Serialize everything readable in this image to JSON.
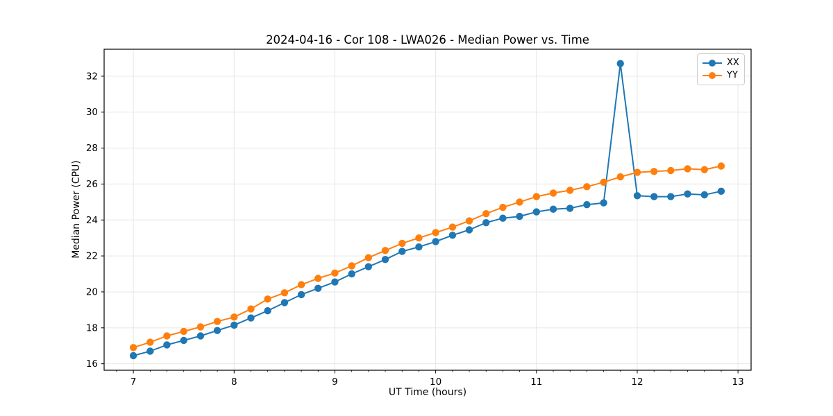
{
  "chart_data": {
    "type": "line",
    "title": "2024-04-16 - Cor 108 - LWA026 - Median Power vs. Time",
    "xlabel": "UT Time (hours)",
    "ylabel": "Median Power (CPU)",
    "xlim": [
      6.71,
      13.13
    ],
    "ylim": [
      15.64,
      33.5
    ],
    "xticks": [
      7,
      8,
      9,
      10,
      11,
      12,
      13
    ],
    "yticks": [
      16,
      18,
      20,
      22,
      24,
      26,
      28,
      30,
      32
    ],
    "x_minor_tick_step": 0.16667,
    "grid": true,
    "grid_color": "#e6e6e6",
    "spine_color": "#000000",
    "legend_position": "upper right",
    "marker": "circle",
    "x": [
      7.0,
      7.167,
      7.333,
      7.5,
      7.667,
      7.833,
      8.0,
      8.167,
      8.333,
      8.5,
      8.667,
      8.833,
      9.0,
      9.167,
      9.333,
      9.5,
      9.667,
      9.833,
      10.0,
      10.167,
      10.333,
      10.5,
      10.667,
      10.833,
      11.0,
      11.167,
      11.333,
      11.5,
      11.667,
      11.833,
      12.0,
      12.167,
      12.333,
      12.5,
      12.667,
      12.833
    ],
    "series": [
      {
        "name": "XX",
        "color": "#1f77b4",
        "values": [
          16.45,
          16.7,
          17.05,
          17.3,
          17.55,
          17.85,
          18.15,
          18.55,
          18.95,
          19.4,
          19.85,
          20.2,
          20.55,
          21.0,
          21.4,
          21.8,
          22.25,
          22.5,
          22.8,
          23.15,
          23.45,
          23.85,
          24.1,
          24.2,
          24.45,
          24.6,
          24.65,
          24.85,
          24.95,
          32.7,
          25.35,
          25.3,
          25.3,
          25.45,
          25.4,
          25.6
        ]
      },
      {
        "name": "YY",
        "color": "#ff7f0e",
        "values": [
          16.9,
          17.2,
          17.55,
          17.8,
          18.05,
          18.35,
          18.6,
          19.05,
          19.6,
          19.95,
          20.4,
          20.75,
          21.05,
          21.45,
          21.9,
          22.3,
          22.7,
          23.0,
          23.3,
          23.6,
          23.95,
          24.35,
          24.7,
          25.0,
          25.3,
          25.5,
          25.65,
          25.85,
          26.1,
          26.4,
          26.65,
          26.7,
          26.75,
          26.85,
          26.8,
          27.0
        ]
      }
    ]
  }
}
